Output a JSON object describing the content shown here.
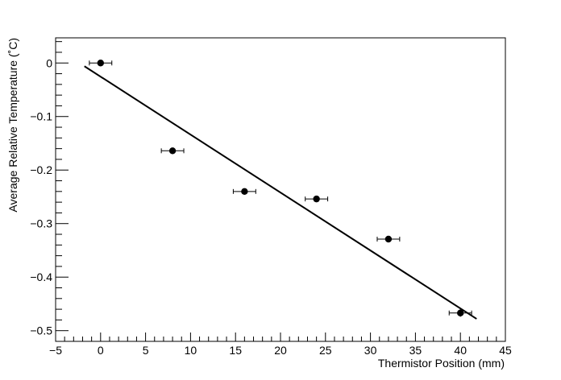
{
  "chart_data": {
    "type": "scatter",
    "xlabel": "Thermistor Position (mm)",
    "ylabel": "Average Relative Temperature (˚C)",
    "xlim": [
      -5,
      45
    ],
    "ylim": [
      -0.52,
      0.047
    ],
    "x_ticks": [
      -5,
      0,
      5,
      10,
      15,
      20,
      25,
      30,
      35,
      40,
      45
    ],
    "x_tick_labels": [
      "−5",
      "0",
      "5",
      "10",
      "15",
      "20",
      "25",
      "30",
      "35",
      "40",
      "45"
    ],
    "y_ticks": [
      0,
      -0.1,
      -0.2,
      -0.3,
      -0.4,
      -0.5
    ],
    "y_tick_labels": [
      "0",
      "−0.1",
      "−0.2",
      "−0.3",
      "−0.4",
      "−0.5"
    ],
    "grid": false,
    "legend": "none",
    "series": [
      {
        "x": [
          0,
          8,
          16,
          24,
          32,
          40
        ],
        "y": [
          0,
          -0.164,
          -0.24,
          -0.254,
          -0.329,
          -0.467
        ],
        "x_err": [
          1.25,
          1.25,
          1.25,
          1.25,
          1.25,
          1.25
        ],
        "y_err": [
          0.005,
          0.006,
          0.004,
          0.005,
          0.004,
          0.007
        ],
        "marker": "filled-circle",
        "color": "#000000"
      }
    ],
    "fit_line": {
      "x": [
        -1.8,
        41.8
      ],
      "y": [
        -0.006,
        -0.478
      ],
      "color": "#000000"
    }
  }
}
